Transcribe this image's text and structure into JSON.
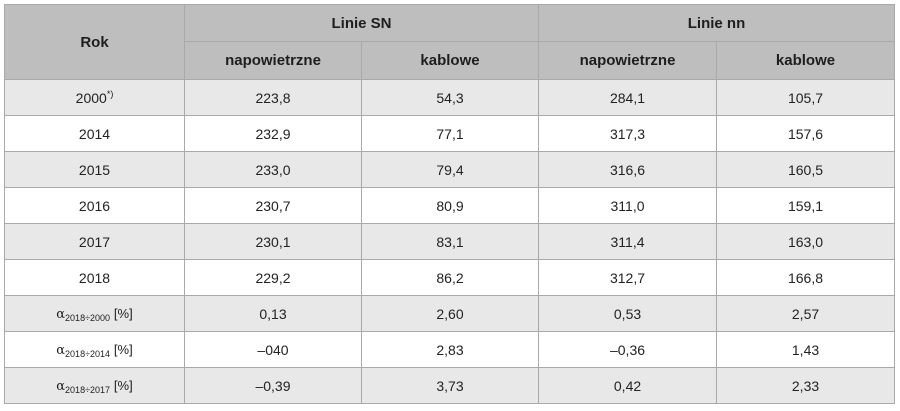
{
  "header": {
    "rok": "Rok",
    "group_sn": "Linie SN",
    "group_nn": "Linie nn",
    "sub_sn_napowietrzne": "napowietrzne",
    "sub_sn_kablowe": "kablowe",
    "sub_nn_napowietrzne": "napowietrzne",
    "sub_nn_kablowe": "kablowe"
  },
  "rows": [
    {
      "year": "2000",
      "sup": "*)",
      "sn_nap": "223,8",
      "sn_kab": "54,3",
      "nn_nap": "284,1",
      "nn_kab": "105,7"
    },
    {
      "year": "2014",
      "sup": "",
      "sn_nap": "232,9",
      "sn_kab": "77,1",
      "nn_nap": "317,3",
      "nn_kab": "157,6"
    },
    {
      "year": "2015",
      "sup": "",
      "sn_nap": "233,0",
      "sn_kab": "79,4",
      "nn_nap": "316,6",
      "nn_kab": "160,5"
    },
    {
      "year": "2016",
      "sup": "",
      "sn_nap": "230,7",
      "sn_kab": "80,9",
      "nn_nap": "311,0",
      "nn_kab": "159,1"
    },
    {
      "year": "2017",
      "sup": "",
      "sn_nap": "230,1",
      "sn_kab": "83,1",
      "nn_nap": "311,4",
      "nn_kab": "163,0"
    },
    {
      "year": "2018",
      "sup": "",
      "sn_nap": "229,2",
      "sn_kab": "86,2",
      "nn_nap": "312,7",
      "nn_kab": "166,8"
    }
  ],
  "alpha_rows": [
    {
      "symbol": "α",
      "sub": "2018÷2000",
      "unit": "[%]",
      "sn_nap": "0,13",
      "sn_kab": "2,60",
      "nn_nap": "0,53",
      "nn_kab": "2,57"
    },
    {
      "symbol": "α",
      "sub": "2018÷2014",
      "unit": "[%]",
      "sn_nap": "–040",
      "sn_kab": "2,83",
      "nn_nap": "–0,36",
      "nn_kab": "1,43"
    },
    {
      "symbol": "α",
      "sub": "2018÷2017",
      "unit": "[%]",
      "sn_nap": "–0,39",
      "sn_kab": "3,73",
      "nn_nap": "0,42",
      "nn_kab": "2,33"
    }
  ]
}
